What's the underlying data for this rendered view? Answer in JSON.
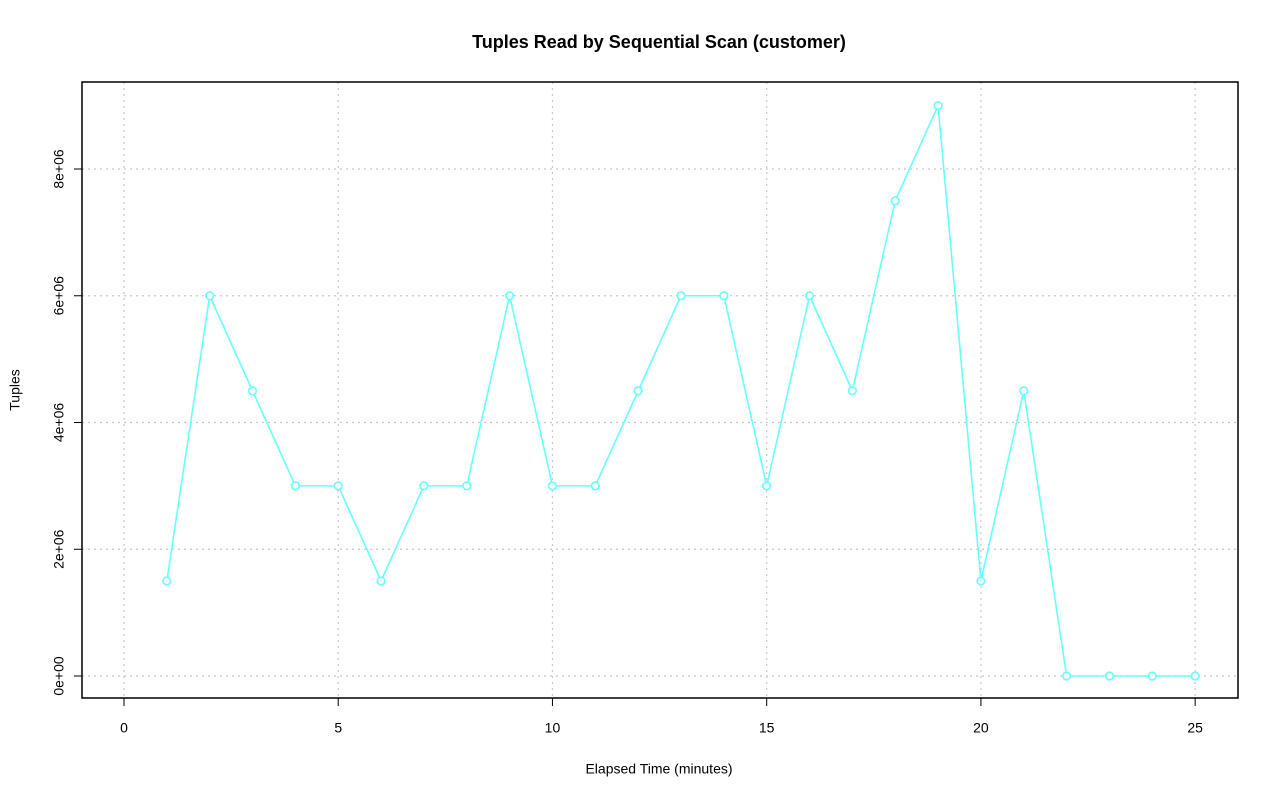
{
  "chart_data": {
    "type": "line",
    "title": "Tuples Read by Sequential Scan (customer)",
    "x_label": "Elapsed Time (minutes)",
    "y_label": "Tuples",
    "x": [
      1,
      2,
      3,
      4,
      5,
      6,
      7,
      8,
      9,
      10,
      11,
      12,
      13,
      14,
      15,
      16,
      17,
      18,
      19,
      20,
      21,
      22,
      23,
      24,
      25
    ],
    "series": [
      {
        "name": "customer",
        "color": "#66ffff",
        "values": [
          1500000,
          6000000,
          4500000,
          3000000,
          3000000,
          1500000,
          3000000,
          3000000,
          6000000,
          3000000,
          3000000,
          4500000,
          6000000,
          6000000,
          3000000,
          6000000,
          4500000,
          7500000,
          9000000,
          1500000,
          4500000,
          0,
          0,
          0,
          0
        ]
      }
    ],
    "xlim": [
      -0.98,
      26.0
    ],
    "xticks": [
      0,
      5,
      10,
      15,
      20,
      25
    ],
    "ylim": [
      -347000,
      9373000
    ],
    "yticks": [
      {
        "value": 0,
        "label": "0e+00"
      },
      {
        "value": 2000000,
        "label": "2e+06"
      },
      {
        "value": 4000000,
        "label": "4e+06"
      },
      {
        "value": 6000000,
        "label": "6e+06"
      },
      {
        "value": 8000000,
        "label": "8e+06"
      }
    ],
    "grid": true
  }
}
